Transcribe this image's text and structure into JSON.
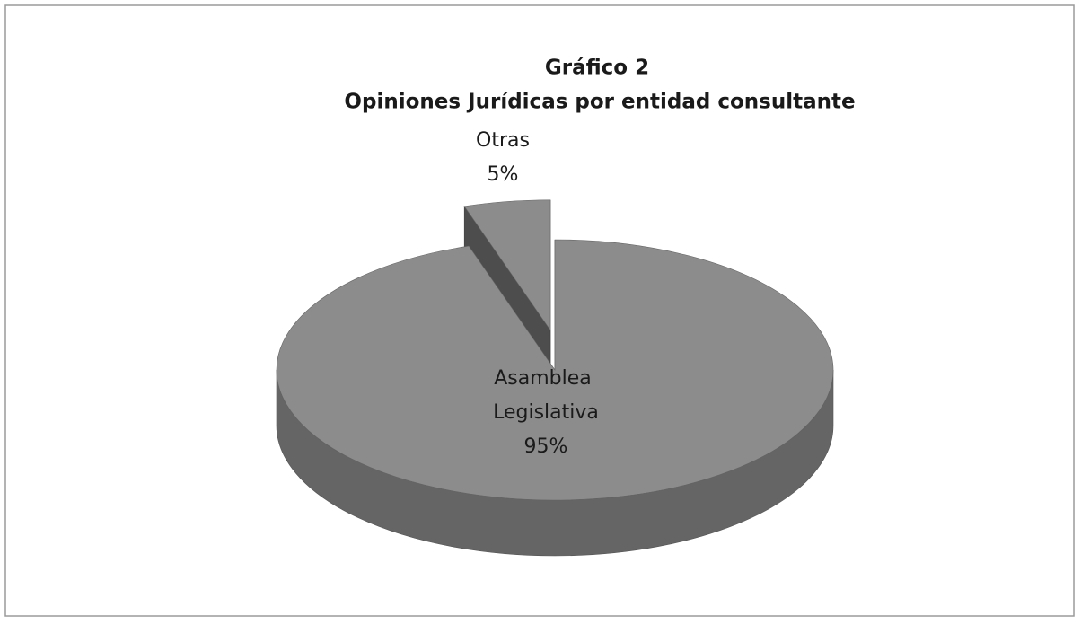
{
  "chart_data": {
    "type": "pie",
    "title": "Gráfico 2",
    "subtitle": "Opiniones Jurídicas por entidad consultante",
    "categories": [
      "Asamblea Legislativa",
      "Otras"
    ],
    "values": [
      95,
      5
    ],
    "value_labels": [
      "95%",
      "5%"
    ],
    "colors": [
      "#8c8c8c",
      "#8c8c8c"
    ]
  }
}
